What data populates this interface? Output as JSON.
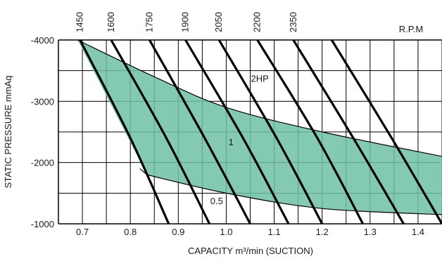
{
  "chart_data": {
    "type": "line",
    "title": "",
    "xlabel": "CAPACITY m³/min (SUCTION)",
    "ylabel": "STATIC PRESSURE mmAq",
    "top_axis_label": "R.P.M",
    "xlim": [
      0.65,
      1.45
    ],
    "ylim": [
      -4000,
      -1000
    ],
    "x_ticks": [
      "0.7",
      "0.8",
      "0.9",
      "1.0",
      "1.1",
      "1.2",
      "1.3",
      "1.4"
    ],
    "y_ticks": [
      "-4000",
      "-3000",
      "-2000",
      "-1000"
    ],
    "grid": true,
    "rpm_labels": [
      "1450",
      "1600",
      "1750",
      "1900",
      "2050",
      "2200",
      "2350"
    ],
    "series": [
      {
        "name": "1450",
        "x": [
          0.695,
          0.8,
          0.88
        ],
        "y": [
          -4000,
          -2400,
          -1000
        ]
      },
      {
        "name": "1600",
        "x": [
          0.76,
          0.875,
          0.965
        ],
        "y": [
          -4000,
          -2400,
          -1000
        ]
      },
      {
        "name": "1750",
        "x": [
          0.84,
          0.955,
          1.05
        ],
        "y": [
          -4000,
          -2400,
          -1000
        ]
      },
      {
        "name": "1900",
        "x": [
          0.915,
          1.035,
          1.13
        ],
        "y": [
          -4000,
          -2400,
          -1000
        ]
      },
      {
        "name": "2050",
        "x": [
          0.985,
          1.105,
          1.2
        ],
        "y": [
          -4000,
          -2400,
          -1000
        ]
      },
      {
        "name": "2200",
        "x": [
          1.065,
          1.19,
          1.285
        ],
        "y": [
          -4000,
          -2400,
          -1000
        ]
      },
      {
        "name": "2350",
        "x": [
          1.14,
          1.265,
          1.37
        ],
        "y": [
          -4000,
          -2400,
          -1000
        ]
      },
      {
        "name": "",
        "x": [
          1.22,
          1.345,
          1.45
        ],
        "y": [
          -4000,
          -2400,
          -1000
        ]
      }
    ],
    "operating_region": {
      "upper_boundary": {
        "x": [
          0.69,
          0.85,
          1.0,
          1.2,
          1.45
        ],
        "y": [
          -4000,
          -3400,
          -2900,
          -2500,
          -2100
        ]
      },
      "lower_boundary": {
        "x": [
          0.835,
          1.0,
          1.2,
          1.45
        ],
        "y": [
          -1800,
          -1500,
          -1250,
          -1150
        ]
      },
      "color": "#6fbfa4"
    },
    "annotations": [
      {
        "text": "2HP",
        "x": 1.07,
        "y": -3320
      },
      {
        "text": "1",
        "x": 1.01,
        "y": -2280
      },
      {
        "text": "0.5",
        "x": 0.98,
        "y": -1320
      }
    ]
  },
  "colors": {
    "fill": "#6fbfa4",
    "line": "#000000",
    "grid": "#000000"
  }
}
